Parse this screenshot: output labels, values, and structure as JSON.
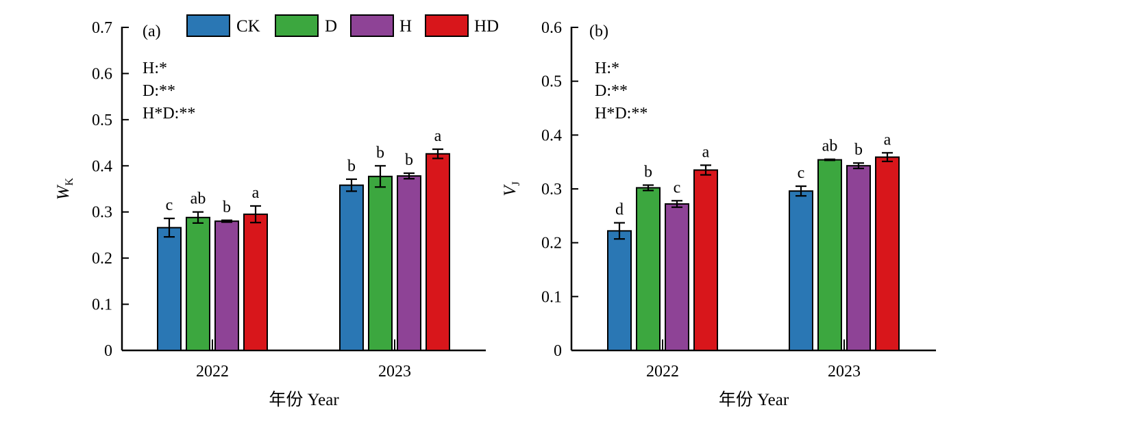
{
  "legend": {
    "items": [
      {
        "label": "CK",
        "color": "#2a77b4"
      },
      {
        "label": "D",
        "color": "#3ca73f"
      },
      {
        "label": "H",
        "color": "#8e4396"
      },
      {
        "label": "HD",
        "color": "#d8161b"
      }
    ]
  },
  "chart_data": [
    {
      "type": "bar",
      "panel_label": "(a)",
      "xlabel": "年份 Year",
      "ylabel_main": "W",
      "ylabel_sub": "K",
      "categories": [
        "2022",
        "2023"
      ],
      "ylim": [
        0,
        0.7
      ],
      "yticks": [
        "0",
        "0.1",
        "0.2",
        "0.3",
        "0.4",
        "0.5",
        "0.6",
        "0.7"
      ],
      "significance": [
        "H:*",
        "D:**",
        "H*D:**"
      ],
      "series": [
        {
          "name": "CK",
          "values": [
            0.266,
            0.358
          ],
          "errors": [
            0.02,
            0.013
          ],
          "letters": [
            "c",
            "b"
          ]
        },
        {
          "name": "D",
          "values": [
            0.288,
            0.377
          ],
          "errors": [
            0.012,
            0.023
          ],
          "letters": [
            "ab",
            "b"
          ]
        },
        {
          "name": "H",
          "values": [
            0.28,
            0.378
          ],
          "errors": [
            0.002,
            0.006
          ],
          "letters": [
            "b",
            "b"
          ]
        },
        {
          "name": "HD",
          "values": [
            0.295,
            0.426
          ],
          "errors": [
            0.018,
            0.01
          ],
          "letters": [
            "a",
            "a"
          ]
        }
      ]
    },
    {
      "type": "bar",
      "panel_label": "(b)",
      "xlabel": "年份 Year",
      "ylabel_main": "V",
      "ylabel_sub": "J",
      "categories": [
        "2022",
        "2023"
      ],
      "ylim": [
        0,
        0.6
      ],
      "yticks": [
        "0",
        "0.1",
        "0.2",
        "0.3",
        "0.4",
        "0.5",
        "0.6"
      ],
      "significance": [
        "H:*",
        "D:**",
        "H*D:**"
      ],
      "series": [
        {
          "name": "CK",
          "values": [
            0.222,
            0.296
          ],
          "errors": [
            0.015,
            0.009
          ],
          "letters": [
            "d",
            "c"
          ]
        },
        {
          "name": "D",
          "values": [
            0.302,
            0.354
          ],
          "errors": [
            0.005,
            0.001
          ],
          "letters": [
            "b",
            "ab"
          ]
        },
        {
          "name": "H",
          "values": [
            0.272,
            0.343
          ],
          "errors": [
            0.006,
            0.005
          ],
          "letters": [
            "c",
            "b"
          ]
        },
        {
          "name": "HD",
          "values": [
            0.335,
            0.359
          ],
          "errors": [
            0.009,
            0.008
          ],
          "letters": [
            "a",
            "a"
          ]
        }
      ]
    }
  ]
}
